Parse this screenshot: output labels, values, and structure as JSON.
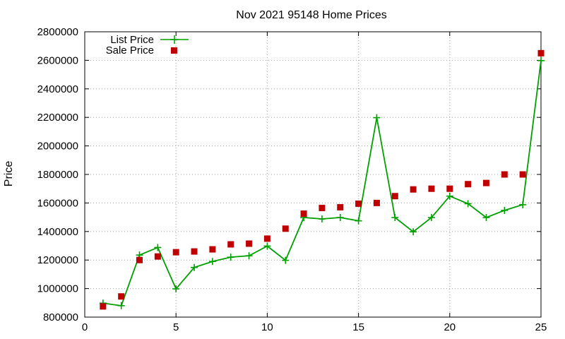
{
  "chart_data": {
    "type": "line",
    "title": "Nov 2021 95148 Home Prices",
    "xlabel": "",
    "ylabel": "Price",
    "xlim": [
      0,
      25
    ],
    "ylim": [
      800000,
      2800000
    ],
    "x_ticks": [
      0,
      5,
      10,
      15,
      20,
      25
    ],
    "y_ticks": [
      800000,
      1000000,
      1200000,
      1400000,
      1600000,
      1800000,
      2000000,
      2200000,
      2400000,
      2600000,
      2800000
    ],
    "grid": true,
    "legend_position": "top-left",
    "series": [
      {
        "name": "List Price",
        "style": "line-plus",
        "color": "#00a000",
        "x": [
          1,
          2,
          3,
          4,
          5,
          6,
          7,
          8,
          9,
          10,
          11,
          12,
          13,
          14,
          15,
          16,
          17,
          18,
          19,
          20,
          21,
          22,
          23,
          24,
          25
        ],
        "values": [
          898000,
          880000,
          1235000,
          1288000,
          998000,
          1148000,
          1190000,
          1220000,
          1230000,
          1298000,
          1198000,
          1498000,
          1488000,
          1498000,
          1475000,
          2198000,
          1498000,
          1398000,
          1498000,
          1648000,
          1595000,
          1498000,
          1548000,
          1588000,
          2598000
        ]
      },
      {
        "name": "Sale Price",
        "style": "points-square",
        "color": "#c00000",
        "x": [
          1,
          2,
          3,
          4,
          5,
          6,
          7,
          8,
          9,
          10,
          11,
          12,
          13,
          14,
          15,
          16,
          17,
          18,
          19,
          20,
          21,
          22,
          23,
          24,
          25
        ],
        "values": [
          875000,
          945000,
          1200000,
          1225000,
          1255000,
          1260000,
          1275000,
          1310000,
          1315000,
          1350000,
          1420000,
          1525000,
          1565000,
          1570000,
          1595000,
          1600000,
          1648000,
          1695000,
          1700000,
          1700000,
          1732000,
          1740000,
          1800000,
          1800000,
          2650000
        ]
      }
    ]
  }
}
